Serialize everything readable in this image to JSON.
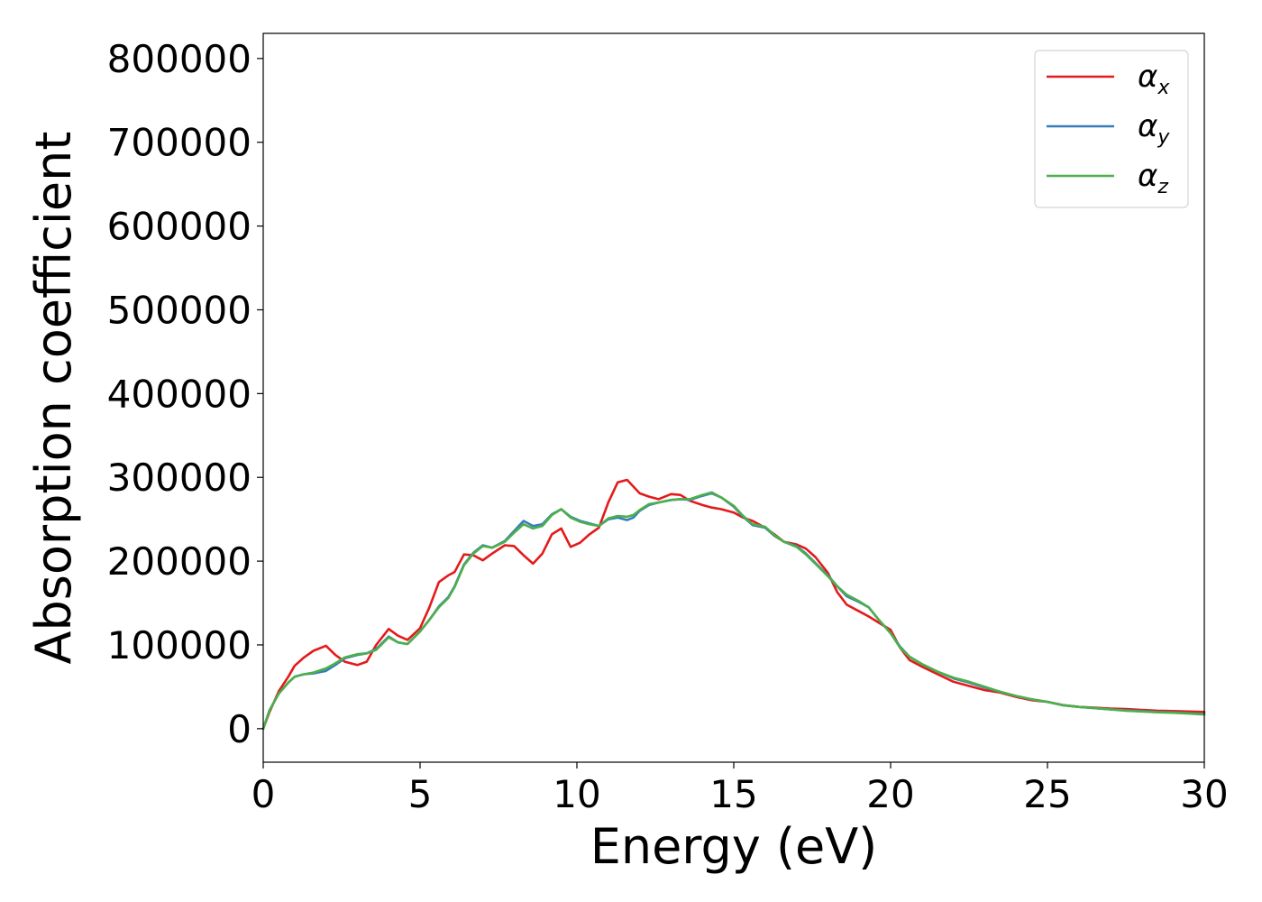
{
  "chart_data": {
    "type": "line",
    "title": "",
    "xlabel": "Energy (eV)",
    "ylabel": "Absorption coefficient",
    "xlim": [
      0,
      30
    ],
    "ylim": [
      -40000,
      830000
    ],
    "xticks": [
      0,
      5,
      10,
      15,
      20,
      25,
      30
    ],
    "yticks": [
      0,
      100000,
      200000,
      300000,
      400000,
      500000,
      600000,
      700000,
      800000
    ],
    "grid": false,
    "legend_position": "top-right",
    "series": [
      {
        "name": "α",
        "subscript": "x",
        "color": "#e41a1c",
        "x": [
          0,
          0.2,
          0.5,
          0.8,
          1.0,
          1.3,
          1.6,
          2.0,
          2.3,
          2.6,
          3.0,
          3.3,
          3.6,
          4.0,
          4.3,
          4.6,
          5.0,
          5.3,
          5.6,
          5.9,
          6.1,
          6.4,
          6.7,
          7.0,
          7.3,
          7.7,
          8.0,
          8.3,
          8.6,
          8.9,
          9.2,
          9.5,
          9.8,
          10.1,
          10.4,
          10.7,
          11.0,
          11.3,
          11.6,
          11.8,
          12.0,
          12.3,
          12.6,
          13.0,
          13.3,
          13.6,
          14.0,
          14.3,
          14.6,
          15.0,
          15.3,
          15.6,
          16.0,
          16.3,
          16.6,
          17.0,
          17.3,
          17.6,
          18.0,
          18.3,
          18.6,
          19.0,
          19.3,
          19.6,
          20.0,
          20.3,
          20.6,
          21.0,
          21.5,
          22.0,
          22.5,
          23.0,
          23.5,
          24.0,
          24.5,
          25.0,
          25.5,
          26.0,
          26.5,
          27.0,
          27.5,
          28.0,
          28.5,
          29.0,
          29.5,
          30.0
        ],
        "y": [
          0,
          20000,
          45000,
          62000,
          75000,
          85000,
          93000,
          99000,
          88000,
          80000,
          76000,
          80000,
          100000,
          119000,
          111000,
          106000,
          120000,
          145000,
          175000,
          183000,
          187000,
          208000,
          207000,
          201000,
          209000,
          219000,
          218000,
          207000,
          197000,
          209000,
          232000,
          239000,
          217000,
          222000,
          232000,
          240000,
          270000,
          294000,
          297000,
          289000,
          281000,
          277000,
          274000,
          280000,
          279000,
          272000,
          267000,
          264000,
          262000,
          258000,
          252000,
          248000,
          240000,
          232000,
          223000,
          220000,
          215000,
          205000,
          186000,
          163000,
          148000,
          140000,
          134000,
          127000,
          118000,
          97000,
          82000,
          74000,
          65000,
          56000,
          51000,
          46000,
          43000,
          38000,
          34000,
          32000,
          28000,
          26000,
          25000,
          24000,
          23500,
          22500,
          21500,
          21000,
          20500,
          20000
        ]
      },
      {
        "name": "α",
        "subscript": "y",
        "color": "#377eb8",
        "x": [
          0,
          0.2,
          0.5,
          0.8,
          1.0,
          1.3,
          1.6,
          2.0,
          2.3,
          2.6,
          3.0,
          3.3,
          3.6,
          4.0,
          4.3,
          4.6,
          5.0,
          5.3,
          5.6,
          5.9,
          6.1,
          6.4,
          6.7,
          7.0,
          7.3,
          7.7,
          8.0,
          8.3,
          8.6,
          8.9,
          9.2,
          9.5,
          9.8,
          10.1,
          10.4,
          10.7,
          11.0,
          11.3,
          11.6,
          11.8,
          12.0,
          12.3,
          12.6,
          13.0,
          13.3,
          13.6,
          14.0,
          14.3,
          14.6,
          15.0,
          15.3,
          15.6,
          16.0,
          16.3,
          16.6,
          17.0,
          17.3,
          17.6,
          18.0,
          18.3,
          18.6,
          19.0,
          19.3,
          19.6,
          20.0,
          20.3,
          20.6,
          21.0,
          21.5,
          22.0,
          22.5,
          23.0,
          23.5,
          24.0,
          24.5,
          25.0,
          25.5,
          26.0,
          26.5,
          27.0,
          27.5,
          28.0,
          28.5,
          29.0,
          29.5,
          30.0
        ],
        "y": [
          0,
          22000,
          42000,
          55000,
          62000,
          65000,
          66000,
          69000,
          76000,
          84000,
          88000,
          90000,
          95000,
          110000,
          103000,
          101000,
          116000,
          130000,
          146000,
          157000,
          170000,
          196000,
          210000,
          219000,
          216000,
          224000,
          236000,
          248000,
          242000,
          244000,
          256000,
          262000,
          253000,
          248000,
          245000,
          242000,
          250000,
          252000,
          249000,
          252000,
          260000,
          267000,
          270000,
          273000,
          274000,
          273000,
          278000,
          281000,
          276000,
          265000,
          253000,
          243000,
          240000,
          230000,
          223000,
          218000,
          209000,
          198000,
          183000,
          170000,
          158000,
          151000,
          145000,
          131000,
          114000,
          98000,
          86000,
          77000,
          68000,
          60000,
          55000,
          49000,
          44000,
          39000,
          35000,
          32000,
          28000,
          26000,
          24500,
          23000,
          22000,
          21000,
          20000,
          19500,
          18500,
          17500
        ]
      },
      {
        "name": "α",
        "subscript": "z",
        "color": "#4daf4a",
        "x": [
          0,
          0.2,
          0.5,
          0.8,
          1.0,
          1.3,
          1.6,
          2.0,
          2.3,
          2.6,
          3.0,
          3.3,
          3.6,
          4.0,
          4.3,
          4.6,
          5.0,
          5.3,
          5.6,
          5.9,
          6.1,
          6.4,
          6.7,
          7.0,
          7.3,
          7.7,
          8.0,
          8.3,
          8.6,
          8.9,
          9.2,
          9.5,
          9.8,
          10.1,
          10.4,
          10.7,
          11.0,
          11.3,
          11.6,
          11.8,
          12.0,
          12.3,
          12.6,
          13.0,
          13.3,
          13.6,
          14.0,
          14.3,
          14.6,
          15.0,
          15.3,
          15.6,
          16.0,
          16.3,
          16.6,
          17.0,
          17.3,
          17.6,
          18.0,
          18.3,
          18.6,
          19.0,
          19.3,
          19.6,
          20.0,
          20.3,
          20.6,
          21.0,
          21.5,
          22.0,
          22.5,
          23.0,
          23.5,
          24.0,
          24.5,
          25.0,
          25.5,
          26.0,
          26.5,
          27.0,
          27.5,
          28.0,
          28.5,
          29.0,
          29.5,
          30.0
        ],
        "y": [
          0,
          22000,
          42000,
          55000,
          62000,
          65000,
          67000,
          72000,
          78000,
          85000,
          89000,
          90000,
          94000,
          109000,
          103000,
          101000,
          116000,
          130000,
          145000,
          156000,
          169000,
          195000,
          209000,
          218000,
          216000,
          223000,
          234000,
          244000,
          239000,
          242000,
          255000,
          262000,
          252000,
          247000,
          244000,
          242000,
          251000,
          254000,
          253000,
          255000,
          261000,
          268000,
          270000,
          273000,
          274000,
          274000,
          279000,
          282000,
          276000,
          266000,
          254000,
          244000,
          241000,
          231000,
          223000,
          217000,
          208000,
          197000,
          182000,
          170000,
          160000,
          152000,
          145000,
          131000,
          114000,
          97000,
          86000,
          77000,
          68000,
          61000,
          56000,
          50000,
          44000,
          39000,
          35000,
          32000,
          28000,
          26000,
          24500,
          23000,
          21500,
          20500,
          19500,
          19000,
          18000,
          17000
        ]
      }
    ]
  }
}
